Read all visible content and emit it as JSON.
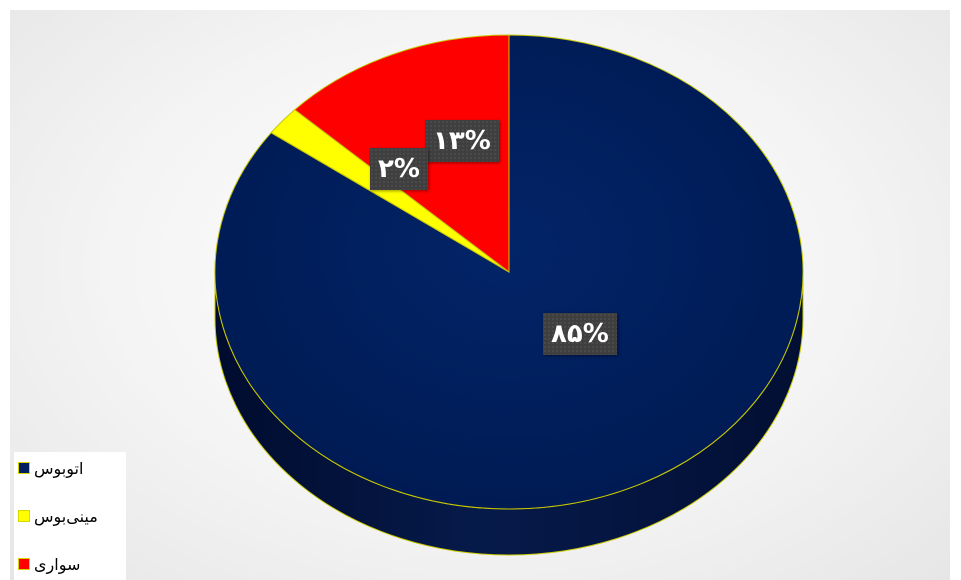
{
  "chart_data": {
    "type": "pie",
    "title": "",
    "categories": [
      "اتوبوس",
      "مینی‌بوس",
      "سواری"
    ],
    "values": [
      85,
      2,
      13
    ],
    "labels": [
      "۸۵%",
      "۲%",
      "۱۳%"
    ],
    "colors": [
      "#002060",
      "#ffff00",
      "#ff0000"
    ],
    "edge_color": "#c8c800",
    "legend_position": "bottom-left",
    "three_d": true
  },
  "legend": {
    "items": [
      {
        "label": "اتوبوس",
        "color": "#002060"
      },
      {
        "label": "مینی‌بوس",
        "color": "#ffff00"
      },
      {
        "label": "سواری",
        "color": "#ff0000"
      }
    ]
  }
}
